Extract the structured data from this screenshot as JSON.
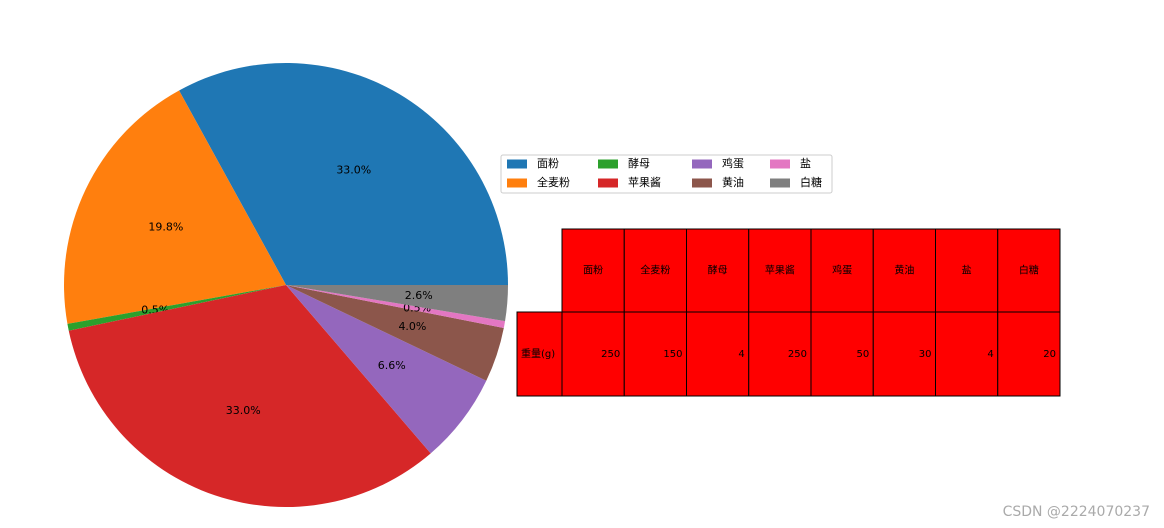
{
  "chart_data": {
    "type": "pie",
    "categories": [
      "面粉",
      "全麦粉",
      "酵母",
      "苹果酱",
      "鸡蛋",
      "黄油",
      "盐",
      "白糖"
    ],
    "values": [
      33.0,
      19.8,
      0.5,
      33.0,
      6.6,
      4.0,
      0.5,
      2.6
    ],
    "value_labels": [
      "33.0%",
      "19.8%",
      "0.5%",
      "33.0%",
      "6.6%",
      "4.0%",
      "0.5%",
      "2.6%"
    ],
    "colors": [
      "#1f77b4",
      "#ff7f0e",
      "#2ca02c",
      "#d62728",
      "#9467bd",
      "#8c564b",
      "#e377c2",
      "#7f7f7f"
    ],
    "legend": "upper right",
    "table": {
      "row_label": "重量(g)",
      "values": [
        250,
        150,
        4,
        250,
        50,
        30,
        4,
        20
      ],
      "color": "#ff0000"
    }
  },
  "watermark": "CSDN @2224070237"
}
